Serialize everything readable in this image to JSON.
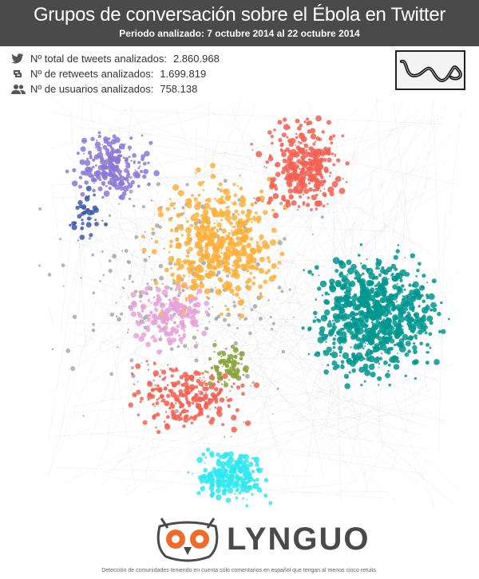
{
  "header": {
    "title": "Grupos de conversación sobre el Ébola en Twitter",
    "subtitle": "Periodo analizado: 7 octubre 2014 al 22 octubre 2014"
  },
  "stats": [
    {
      "icon": "twitter-bird-icon",
      "label": "Nº total de tweets analizados:",
      "value": "2.860.968"
    },
    {
      "icon": "retweet-icon",
      "label": "Nº de retweets analizados:",
      "value": "1.699.819"
    },
    {
      "icon": "users-icon",
      "label": "Nº de usuarios analizados:",
      "value": "758.138"
    }
  ],
  "communities": [
    {
      "name": "purple",
      "color": "#8a78d6"
    },
    {
      "name": "orange",
      "color": "#fbb03b"
    },
    {
      "name": "red",
      "color": "#f26152"
    },
    {
      "name": "teal",
      "color": "#00968f"
    },
    {
      "name": "cyan",
      "color": "#2ee8f0"
    },
    {
      "name": "pink",
      "color": "#e8a2d8"
    },
    {
      "name": "olive",
      "color": "#8aa33a"
    },
    {
      "name": "navy",
      "color": "#3b5ba8"
    },
    {
      "name": "gray",
      "color": "#a8a8a8"
    }
  ],
  "brand": {
    "name": "LYNGUO",
    "owl_color": "#f06a2a",
    "text_color": "#4a4a4a"
  },
  "footer": "Detección de comunidades teniendo en cuenta sólo comentarios en español que tengan al menos cinco retuits."
}
